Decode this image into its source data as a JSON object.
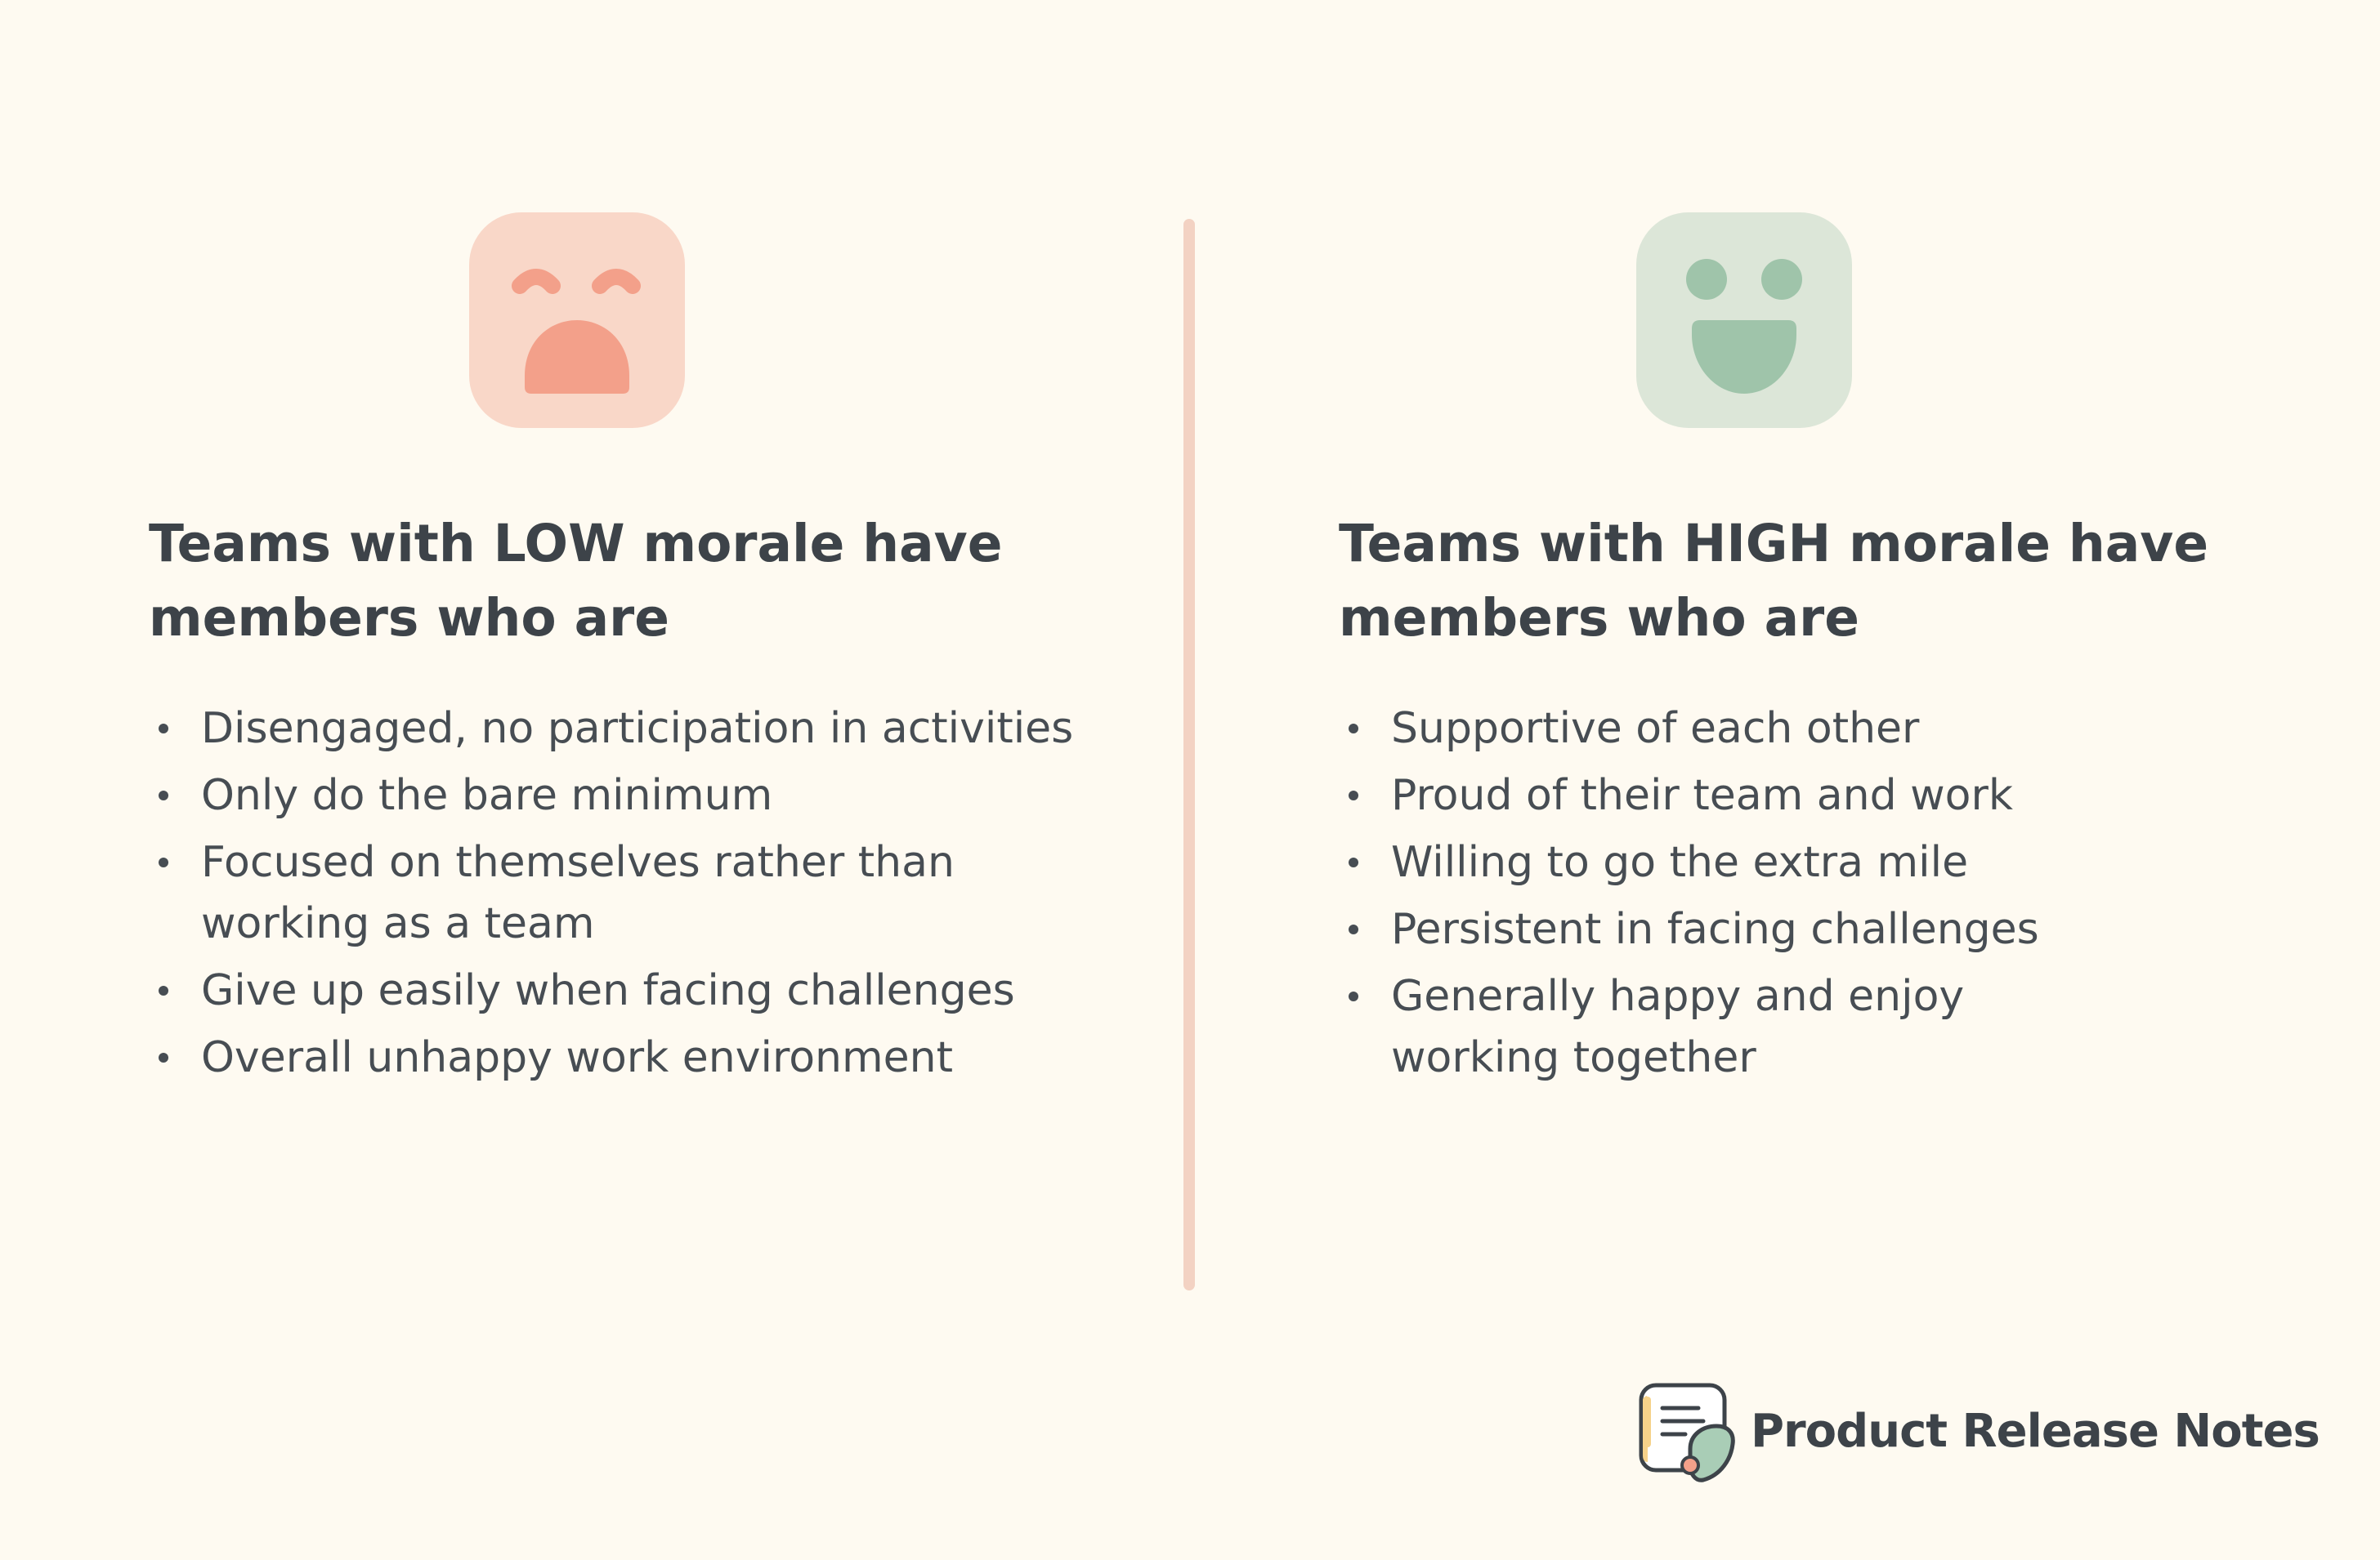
{
  "low_morale": {
    "icon": "crying-face-icon",
    "icon_bg_color": "#f9d7c8",
    "icon_color": "#f3a08a",
    "heading": "Teams with LOW morale have members who are",
    "items": [
      "Disengaged, no participation in activities",
      "Only do the bare minimum",
      "Focused on themselves rather than working as a team",
      "Give up easily when facing challenges",
      "Overall unhappy work environment"
    ]
  },
  "high_morale": {
    "icon": "happy-face-icon",
    "icon_bg_color": "#dce6d8",
    "icon_color": "#9fc4aa",
    "heading": "Teams with HIGH morale have members who are",
    "items": [
      "Supportive of each other",
      "Proud of their team and work",
      "Willing to go the extra mile",
      "Persistent in facing challenges",
      "Generally happy and enjoy working together"
    ]
  },
  "divider_color": "#f3d2c3",
  "brand": {
    "name": "Product Release Notes",
    "logo": "release-notes-logo-icon"
  }
}
